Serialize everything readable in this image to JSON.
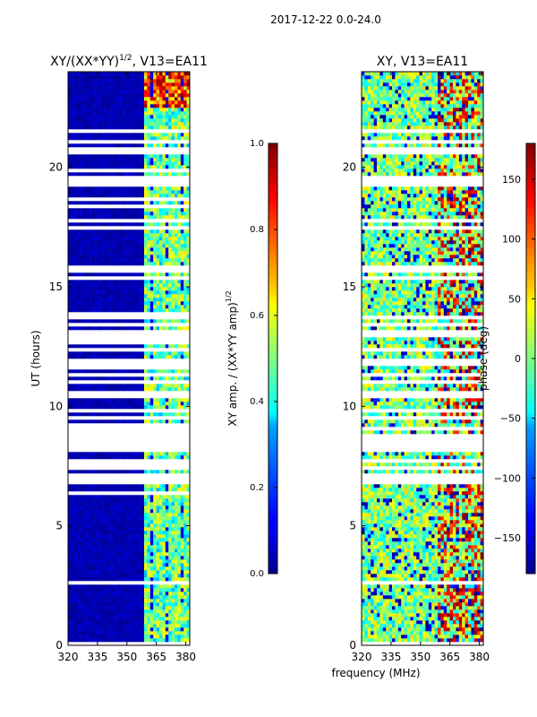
{
  "figure_title": "2017-12-22 0.0-24.0",
  "shared_xlabel": "frequency (MHz)",
  "chart_data": [
    {
      "type": "heatmap",
      "title_text": "XY/(XX*YY)",
      "title_exp": "1/2",
      "title_suffix": ", V13=EA11",
      "xlabel": "",
      "ylabel": "UT (hours)",
      "xlim": [
        320,
        382
      ],
      "ylim": [
        0,
        24
      ],
      "xticks": [
        320,
        335,
        350,
        365,
        380
      ],
      "yticks": [
        0,
        5,
        10,
        15,
        20
      ],
      "value_range": [
        0.0,
        1.0
      ],
      "band_edge_mhz": 359,
      "colorbar": {
        "label_text": "XY amp. / (XX*YY amp)",
        "label_exp": "1/2",
        "ticks": [
          "0.0",
          "0.2",
          "0.4",
          "0.6",
          "0.8",
          "1.0"
        ],
        "values": [
          0.0,
          0.2,
          0.4,
          0.6,
          0.8,
          1.0
        ]
      }
    },
    {
      "type": "heatmap",
      "title_text": "XY, V13=EA11",
      "xlabel": "frequency (MHz)",
      "ylabel": "",
      "xlim": [
        320,
        382
      ],
      "ylim": [
        0,
        24
      ],
      "xticks": [
        320,
        335,
        350,
        365,
        380
      ],
      "yticks": [
        0,
        5,
        10,
        15,
        20
      ],
      "value_range": [
        -180,
        180
      ],
      "colorbar": {
        "label_text": "phase (deg)",
        "ticks": [
          "150",
          "100",
          "50",
          "0",
          "−50",
          "−100",
          "−150"
        ],
        "values": [
          150,
          100,
          50,
          0,
          -50,
          -100,
          -150
        ]
      }
    }
  ]
}
